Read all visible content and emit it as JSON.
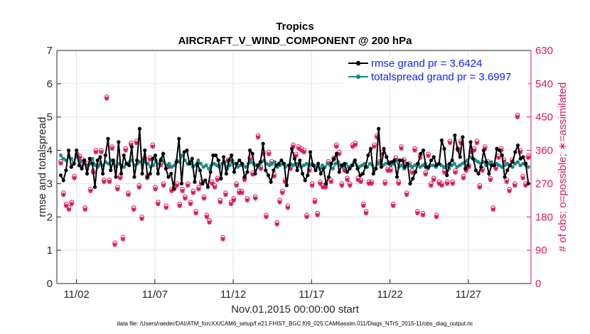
{
  "chart_data": {
    "type": "line",
    "title": "Tropics",
    "subtitle": "AIRCRAFT_V_WIND_COMPONENT @ 200 hPa",
    "xlabel": "Nov.01,2015 00:00:00 start",
    "ylabel": "rmse and totalspread",
    "y2label": "# of obs: o=possible; ∗=assimilated",
    "x_ticks": [
      {
        "day": 2,
        "label": "11/02"
      },
      {
        "day": 7,
        "label": "11/07"
      },
      {
        "day": 12,
        "label": "11/12"
      },
      {
        "day": 17,
        "label": "11/17"
      },
      {
        "day": 22,
        "label": "11/22"
      },
      {
        "day": 27,
        "label": "11/27"
      }
    ],
    "xlim": [
      0.75,
      31.0
    ],
    "ylim": [
      0,
      7
    ],
    "y_ticks": [
      "0",
      "1",
      "2",
      "3",
      "4",
      "5",
      "6",
      "7"
    ],
    "y2lim": [
      0,
      630
    ],
    "y2_ticks": [
      "0",
      "90",
      "180",
      "270",
      "360",
      "450",
      "540",
      "630"
    ],
    "grid": true,
    "legend": {
      "position": "top-right",
      "entries": [
        "rmse grand pr = 3.6424",
        "totalspread grand pr = 3.6997"
      ]
    },
    "colors": {
      "rmse": "#000000",
      "totalspread": "#1a8a8a",
      "obs": "#d81b60",
      "legend_text": "#0b24fb"
    },
    "series": [
      {
        "name": "rmse",
        "values": [
          3.25,
          3.1,
          3.4,
          4.0,
          3.5,
          3.6,
          4.0,
          3.55,
          3.45,
          3.7,
          3.3,
          3.75,
          3.6,
          2.9,
          3.7,
          3.8,
          3.3,
          3.85,
          4.35,
          3.4,
          3.7,
          3.2,
          4.25,
          3.3,
          3.85,
          3.6,
          3.55,
          4.1,
          3.2,
          3.7,
          4.65,
          3.3,
          4.0,
          3.2,
          3.3,
          3.75,
          3.85,
          3.3,
          3.7,
          3.9,
          3.45,
          3.2,
          3.3,
          2.85,
          3.65,
          4.35,
          3.0,
          3.95,
          4.0,
          3.6,
          3.75,
          3.05,
          3.6,
          3.4,
          3.0,
          3.1,
          2.9,
          3.35,
          3.85,
          3.85,
          3.7,
          3.15,
          3.8,
          3.3,
          3.7,
          3.85,
          3.35,
          3.6,
          3.7,
          3.6,
          3.2,
          3.35,
          4.0,
          3.9,
          3.3,
          3.55,
          3.65,
          4.2,
          3.4,
          3.25,
          3.05,
          3.4,
          3.55,
          3.6,
          3.7,
          3.6,
          2.95,
          3.55,
          4.05,
          3.75,
          3.4,
          3.7,
          3.3,
          3.1,
          3.25,
          3.95,
          3.55,
          3.4,
          3.6,
          3.3,
          3.45,
          3.0,
          3.2,
          3.6,
          3.75,
          3.9,
          3.35,
          3.55,
          3.6,
          3.35,
          3.45,
          3.55,
          3.7,
          3.45,
          3.25,
          3.3,
          3.5,
          3.85,
          4.05,
          3.3,
          3.45,
          4.65,
          3.5,
          4.05,
          3.8,
          3.6,
          3.65,
          3.7,
          3.2,
          3.7,
          3.7,
          3.5,
          3.6,
          3.0,
          3.15,
          3.35,
          3.6,
          3.9,
          4.0,
          3.5,
          3.5,
          3.7,
          3.8,
          3.55,
          3.6,
          4.3,
          4.05,
          3.25,
          3.6,
          3.7,
          4.45,
          4.05,
          3.8,
          4.4,
          3.45,
          3.55,
          4.25,
          3.75,
          3.4,
          3.3,
          3.5,
          4.0,
          3.65,
          3.3,
          3.55,
          3.55,
          4.05,
          4.0,
          3.85,
          3.2,
          3.4,
          3.55,
          3.65,
          3.95,
          4.15,
          3.75,
          3.8,
          3.6,
          3.0
        ]
      },
      {
        "name": "totalspread",
        "values": [
          3.85,
          3.75,
          3.7,
          3.8,
          3.75,
          3.6,
          3.85,
          3.7,
          3.5,
          3.6,
          3.45,
          3.6,
          3.75,
          3.55,
          3.5,
          3.6,
          3.55,
          3.65,
          3.6,
          3.7,
          3.65,
          3.5,
          3.6,
          3.55,
          3.5,
          3.6,
          3.65,
          3.7,
          3.55,
          3.6,
          3.65,
          3.7,
          3.65,
          3.6,
          3.5,
          3.55,
          3.7,
          3.6,
          3.75,
          3.65,
          3.55,
          3.6,
          3.5,
          3.55,
          3.7,
          3.65,
          3.85,
          3.7,
          3.6,
          3.65,
          3.5,
          3.55,
          3.7,
          3.6,
          3.5,
          3.55,
          3.45,
          3.55,
          3.6,
          3.55,
          3.5,
          3.6,
          3.65,
          3.45,
          3.55,
          3.7,
          3.6,
          3.5,
          3.55,
          3.55,
          3.5,
          3.6,
          3.65,
          3.6,
          3.55,
          3.5,
          3.65,
          3.7,
          3.6,
          3.55,
          3.6,
          3.65,
          3.5,
          3.55,
          3.6,
          3.5,
          3.55,
          3.6,
          3.55,
          3.6,
          3.6,
          3.5,
          3.55,
          3.6,
          3.55,
          3.6,
          3.55,
          3.5,
          3.45,
          3.55,
          3.5,
          3.6,
          3.55,
          3.45,
          3.6,
          3.65,
          3.55,
          3.5,
          3.6,
          3.5,
          3.55,
          3.65,
          3.55,
          3.5,
          3.55,
          3.6,
          3.5,
          3.6,
          3.55,
          3.45,
          3.6,
          3.65,
          3.55,
          3.6,
          3.65,
          3.55,
          3.6,
          3.7,
          3.5,
          3.55,
          3.45,
          3.6,
          3.55,
          3.5,
          3.55,
          3.6,
          3.5,
          3.55,
          3.6,
          3.45,
          3.55,
          3.55,
          3.5,
          3.6,
          3.55,
          3.5,
          3.55,
          3.45,
          3.55,
          3.6,
          3.5,
          3.55,
          3.6,
          3.65,
          3.7,
          3.8,
          3.75,
          3.7,
          3.65,
          3.6,
          3.65,
          3.55,
          3.6,
          3.65,
          3.55,
          3.6,
          3.55,
          3.5,
          3.55,
          3.6,
          3.55,
          3.5,
          3.6,
          3.65,
          3.55,
          3.6,
          3.55,
          3.5
        ]
      },
      {
        "name": "obs_assimilated",
        "values": [
          325,
          240,
          210,
          200,
          215,
          285,
          345,
          340,
          330,
          200,
          320,
          250,
          300,
          355,
          320,
          355,
          275,
          500,
          275,
          365,
          105,
          255,
          285,
          120,
          360,
          240,
          375,
          200,
          380,
          260,
          175,
          335,
          285,
          335,
          370,
          255,
          215,
          320,
          265,
          205,
          315,
          250,
          255,
          265,
          210,
          250,
          230,
          265,
          215,
          245,
          190,
          255,
          270,
          230,
          180,
          165,
          270,
          260,
          280,
          220,
          120,
          240,
          330,
          215,
          225,
          265,
          245,
          245,
          280,
          225,
          335,
          295,
          230,
          395,
          310,
          350,
          180,
          350,
          325,
          290,
          160,
          220,
          245,
          275,
          205,
          310,
          370,
          345,
          365,
          360,
          355,
          180,
          305,
          265,
          220,
          185,
          270,
          260,
          260,
          325,
          275,
          335,
          370,
          350,
          265,
          305,
          280,
          265,
          370,
          375,
          280,
          275,
          210,
          190,
          270,
          270,
          370,
          395,
          325,
          350,
          270,
          305,
          305,
          210,
          335,
          270,
          365,
          330,
          240,
          320,
          300,
          360,
          190,
          340,
          185,
          295,
          345,
          265,
          280,
          180,
          270,
          265,
          300,
          270,
          380,
          270,
          300,
          360,
          380,
          285,
          305,
          315,
          355,
          360,
          380,
          260,
          305,
          365,
          325,
          280,
          200,
          310,
          340,
          360,
          330,
          275,
          250,
          330,
          265,
          450,
          355,
          285,
          265,
          340
        ]
      },
      {
        "name": "obs_possible",
        "values": [
          330,
          245,
          215,
          205,
          220,
          290,
          350,
          345,
          335,
          205,
          325,
          255,
          305,
          360,
          325,
          360,
          280,
          505,
          280,
          370,
          110,
          260,
          290,
          125,
          365,
          245,
          380,
          205,
          385,
          265,
          180,
          340,
          290,
          340,
          375,
          260,
          220,
          325,
          270,
          210,
          320,
          255,
          260,
          270,
          215,
          255,
          235,
          270,
          220,
          250,
          195,
          260,
          275,
          235,
          185,
          170,
          275,
          265,
          285,
          225,
          125,
          245,
          335,
          220,
          230,
          270,
          250,
          250,
          285,
          230,
          340,
          300,
          235,
          400,
          315,
          355,
          185,
          355,
          330,
          295,
          165,
          225,
          250,
          280,
          210,
          315,
          375,
          350,
          370,
          365,
          360,
          185,
          310,
          270,
          225,
          190,
          275,
          265,
          265,
          330,
          280,
          340,
          375,
          355,
          270,
          310,
          285,
          270,
          375,
          380,
          285,
          280,
          215,
          195,
          275,
          275,
          375,
          400,
          330,
          355,
          275,
          310,
          310,
          215,
          340,
          275,
          370,
          335,
          245,
          325,
          305,
          365,
          195,
          345,
          190,
          300,
          350,
          270,
          285,
          185,
          275,
          270,
          305,
          275,
          385,
          275,
          305,
          365,
          385,
          290,
          310,
          320,
          360,
          365,
          385,
          265,
          310,
          370,
          330,
          285,
          205,
          315,
          345,
          365,
          335,
          280,
          255,
          335,
          270,
          455,
          360,
          290,
          270,
          345
        ]
      }
    ]
  },
  "footer_text": "data file: /Users/raeder/DAI/ATM_forcXX/CAM6_setup/f.e21.FHIST_BGC.f09_025.CAM6assim.011/Diags_NTrS_2015-11/obs_diag_output.nc"
}
